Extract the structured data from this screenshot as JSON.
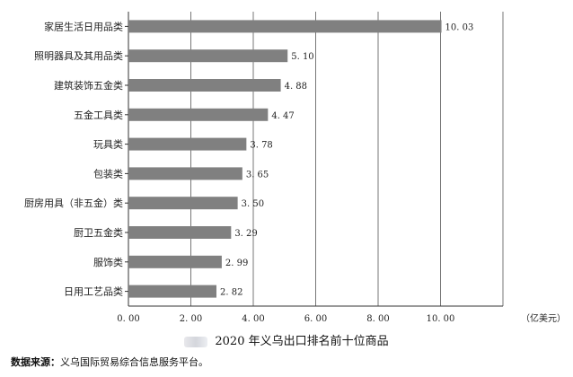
{
  "chart_data": {
    "type": "bar",
    "orientation": "horizontal",
    "title": "2020 年义乌出口排名前十位商品",
    "unit_label": "（亿美元）",
    "categories": [
      "家居生活日用品类",
      "照明器具及其用品类",
      "建筑装饰五金类",
      "五金工具类",
      "玩具类",
      "包装类",
      "厨房用具（非五金）类",
      "厨卫五金类",
      "服饰类",
      "日用工艺品类"
    ],
    "values": [
      10.03,
      5.1,
      4.88,
      4.47,
      3.78,
      3.65,
      3.5,
      3.29,
      2.99,
      2.82
    ],
    "value_labels": [
      "10. 03",
      "5. 10",
      "4. 88",
      "4. 47",
      "3. 78",
      "3. 65",
      "3. 50",
      "3. 29",
      "2. 99",
      "2. 82"
    ],
    "xlim": [
      0,
      12
    ],
    "xticks": [
      0,
      2,
      4,
      6,
      8,
      10
    ],
    "xtick_labels": [
      "0. 00",
      "2. 00",
      "4. 00",
      "6. 00",
      "8. 00",
      "10. 00"
    ],
    "grid": "vertical",
    "bar_color": "#808080"
  },
  "source": {
    "label": "数据来源：",
    "text": "义乌国际贸易综合信息服务平台。"
  }
}
